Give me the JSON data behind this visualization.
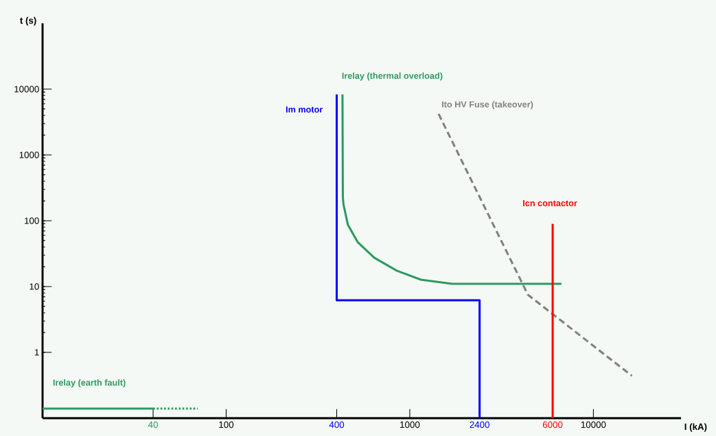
{
  "chart_data": {
    "type": "line",
    "xlabel": "I (kA)",
    "ylabel": "t (s)",
    "log": "xy",
    "xlim": [
      10,
      30000
    ],
    "ylim": [
      0.1,
      100000
    ],
    "xticks": [
      40,
      100,
      400,
      1000,
      2400,
      6000,
      10000
    ],
    "yticks": [
      1,
      10,
      100,
      1000,
      10000
    ],
    "marker": "none",
    "grid": false,
    "legend": false,
    "series": [
      {
        "name": "Irelay (thermal overload)",
        "color": "#2e9960",
        "line_style": "solid",
        "x": [
          430,
          432,
          435,
          460,
          520,
          640,
          850,
          1150,
          1700,
          6700
        ],
        "values": [
          8300,
          230,
          180,
          87,
          47.5,
          27.5,
          17.4,
          12.7,
          11,
          11
        ]
      },
      {
        "name": "Im motor",
        "color": "#0000ff",
        "line_style": "solid",
        "x": [
          400,
          400,
          2400,
          2400
        ],
        "values": [
          8300,
          6.2,
          6.2,
          0.1
        ]
      },
      {
        "name": "Ito HV Fuse (takeover)",
        "color": "#808080",
        "line_style": "dashed",
        "x": [
          1435,
          4400,
          16200
        ],
        "values": [
          4200,
          7.5,
          0.44
        ]
      },
      {
        "name": "Icn contactor",
        "color": "#ff0000",
        "line_style": "solid",
        "x": [
          6000,
          6000
        ],
        "values": [
          90,
          0.1
        ]
      },
      {
        "name": "Irelay (earth fault)",
        "color": "#2e9960",
        "line_style": "solid",
        "x": [
          10,
          40
        ],
        "values": [
          0.14,
          0.14
        ]
      },
      {
        "color": "#2e9960",
        "line_style": "dotted",
        "x": [
          40,
          70
        ],
        "values": [
          0.14,
          0.14
        ]
      }
    ]
  }
}
